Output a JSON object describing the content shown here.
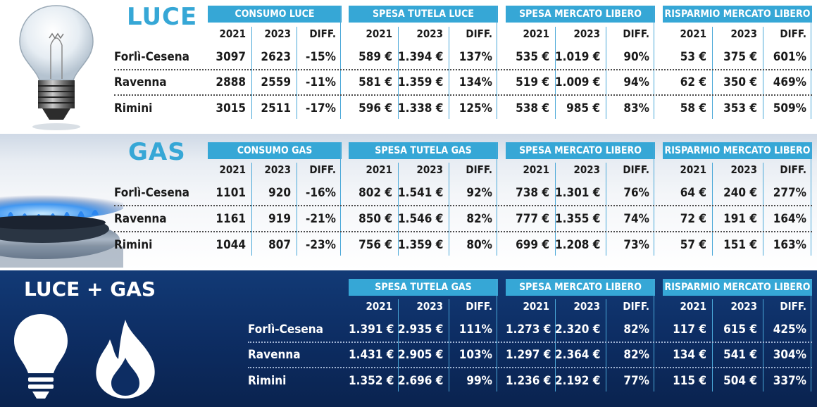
{
  "sections": {
    "luce": {
      "title": "LUCE",
      "groups": [
        {
          "header": "CONSUMO LUCE",
          "years": [
            "2021",
            "2023",
            "DIFF."
          ],
          "rows": [
            [
              "3097",
              "2623",
              "-15%"
            ],
            [
              "2888",
              "2559",
              "-11%"
            ],
            [
              "3015",
              "2511",
              "-17%"
            ]
          ]
        },
        {
          "header": "SPESA TUTELA LUCE",
          "years": [
            "2021",
            "2023",
            "DIFF."
          ],
          "rows": [
            [
              "589 €",
              "1.394 €",
              "137%"
            ],
            [
              "581 €",
              "1.359 €",
              "134%"
            ],
            [
              "596 €",
              "1.338 €",
              "125%"
            ]
          ]
        },
        {
          "header": "SPESA MERCATO LIBERO",
          "years": [
            "2021",
            "2023",
            "DIFF."
          ],
          "rows": [
            [
              "535 €",
              "1.019 €",
              "90%"
            ],
            [
              "519 €",
              "1.009 €",
              "94%"
            ],
            [
              "538 €",
              "985 €",
              "83%"
            ]
          ]
        },
        {
          "header": "RISPARMIO MERCATO LIBERO",
          "years": [
            "2021",
            "2023",
            "DIFF."
          ],
          "rows": [
            [
              "53 €",
              "375 €",
              "601%"
            ],
            [
              "62 €",
              "350 €",
              "469%"
            ],
            [
              "58 €",
              "353 €",
              "509%"
            ]
          ]
        }
      ],
      "cities": [
        "Forlì-Cesena",
        "Ravenna",
        "Rimini"
      ]
    },
    "gas": {
      "title": "GAS",
      "groups": [
        {
          "header": "CONSUMO GAS",
          "years": [
            "2021",
            "2023",
            "DIFF."
          ],
          "rows": [
            [
              "1101",
              "920",
              "-16%"
            ],
            [
              "1161",
              "919",
              "-21%"
            ],
            [
              "1044",
              "807",
              "-23%"
            ]
          ]
        },
        {
          "header": "SPESA TUTELA GAS",
          "years": [
            "2021",
            "2023",
            "DIFF."
          ],
          "rows": [
            [
              "802 €",
              "1.541 €",
              "92%"
            ],
            [
              "850 €",
              "1.546 €",
              "82%"
            ],
            [
              "756 €",
              "1.359 €",
              "80%"
            ]
          ]
        },
        {
          "header": "SPESA MERCATO LIBERO",
          "years": [
            "2021",
            "2023",
            "DIFF."
          ],
          "rows": [
            [
              "738 €",
              "1.301 €",
              "76%"
            ],
            [
              "777 €",
              "1.355 €",
              "74%"
            ],
            [
              "699 €",
              "1.208 €",
              "73%"
            ]
          ]
        },
        {
          "header": "RISPARMIO MERCATO LIBERO",
          "years": [
            "2021",
            "2023",
            "DIFF."
          ],
          "rows": [
            [
              "64 €",
              "240 €",
              "277%"
            ],
            [
              "72 €",
              "191 €",
              "164%"
            ],
            [
              "57 €",
              "151 €",
              "163%"
            ]
          ]
        }
      ],
      "cities": [
        "Forlì-Cesena",
        "Ravenna",
        "Rimini"
      ]
    },
    "luce_gas": {
      "title": "LUCE + GAS",
      "groups": [
        {
          "header": "SPESA TUTELA GAS",
          "years": [
            "2021",
            "2023",
            "DIFF."
          ],
          "rows": [
            [
              "1.391 €",
              "2.935 €",
              "111%"
            ],
            [
              "1.431 €",
              "2.905 €",
              "103%"
            ],
            [
              "1.352 €",
              "2.696 €",
              "99%"
            ]
          ]
        },
        {
          "header": "SPESA MERCATO LIBERO",
          "years": [
            "2021",
            "2023",
            "DIFF."
          ],
          "rows": [
            [
              "1.273 €",
              "2.320 €",
              "82%"
            ],
            [
              "1.297 €",
              "2.364 €",
              "82%"
            ],
            [
              "1.236 €",
              "2.192 €",
              "77%"
            ]
          ]
        },
        {
          "header": "RISPARMIO MERCATO LIBERO",
          "years": [
            "2021",
            "2023",
            "DIFF."
          ],
          "rows": [
            [
              "117 €",
              "615 €",
              "425%"
            ],
            [
              "134 €",
              "541 €",
              "304%"
            ],
            [
              "115 €",
              "504 €",
              "337%"
            ]
          ]
        }
      ],
      "cities": [
        "Forlì-Cesena",
        "Ravenna",
        "Rimini"
      ]
    }
  },
  "colors": {
    "header_bg": "#36a7d6",
    "title_blue": "#36a7d6",
    "dark_band": "#0d2d63",
    "text_dark": "#1a1a1a",
    "text_light": "#ffffff"
  },
  "icons": [
    "light-bulb-photo-icon",
    "gas-burner-photo-icon",
    "light-bulb-icon",
    "flame-icon"
  ]
}
